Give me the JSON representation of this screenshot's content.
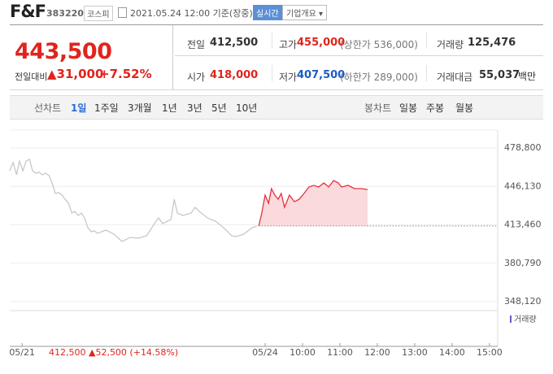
{
  "header": {
    "name": "F&F",
    "code": "383220",
    "market": "코스피",
    "timestamp": "2021.05.24 12:00 기준(장중)",
    "realtime": "실시간",
    "company_info": "기업개요"
  },
  "quote": {
    "price": "443,500",
    "change_label": "전일대비",
    "change": "▲31,000",
    "change_pct": "+7.52%",
    "stats": [
      {
        "label": "전일",
        "value": "412,500"
      },
      {
        "label": "고가",
        "value": "455,000",
        "note": "(상한가 536,000)"
      },
      {
        "label": "거래량",
        "value": "125,476"
      },
      {
        "label": "시가",
        "value": "418,000"
      },
      {
        "label": "저가",
        "value": "407,500",
        "note": "(하한가 289,000)"
      },
      {
        "label": "거래대금",
        "value": "55,037",
        "unit": "백만"
      }
    ]
  },
  "tabs": {
    "line_label": "선차트",
    "line": [
      "1일",
      "1주일",
      "3개월",
      "1년",
      "3년",
      "5년",
      "10년"
    ],
    "candle_label": "봉차트",
    "candle": [
      "일봉",
      "주봉",
      "월봉"
    ]
  },
  "chart_data": {
    "type": "line",
    "ylim": [
      348120,
      478800
    ],
    "yticks": [
      {
        "value": 478800,
        "label": "478,800"
      },
      {
        "value": 446130,
        "label": "446,130"
      },
      {
        "value": 413460,
        "label": "413,460"
      },
      {
        "value": 380790,
        "label": "380,790"
      },
      {
        "value": 348120,
        "label": "348,120"
      }
    ],
    "xlim": [
      -0.33,
      12.72
    ],
    "xticks": [
      {
        "value": 0,
        "label": "05/21"
      },
      {
        "value": 6.5,
        "label": "05/24"
      },
      {
        "value": 7.5,
        "label": "10:00"
      },
      {
        "value": 8.5,
        "label": "11:00"
      },
      {
        "value": 9.5,
        "label": "12:00"
      },
      {
        "value": 10.5,
        "label": "13:00"
      },
      {
        "value": 11.5,
        "label": "14:00"
      },
      {
        "value": 12.5,
        "label": "15:00"
      }
    ],
    "grid": true,
    "baseline": 412500,
    "prev_session_note": "412,500 ▲52,500 (+14.58%)",
    "volume_label": "거래량",
    "series": [
      {
        "color": "#c8c8c8",
        "x": [
          -0.33,
          -0.24,
          -0.15,
          -0.07,
          0.02,
          0.11,
          0.2,
          0.28,
          0.37,
          0.46,
          0.54,
          0.63,
          0.72,
          0.8,
          0.89,
          0.98,
          1.07,
          1.15,
          1.24,
          1.33,
          1.41,
          1.5,
          1.59,
          1.67,
          1.76,
          1.85,
          1.93,
          2.02,
          2.24,
          2.46,
          2.67,
          2.89,
          3.11,
          3.33,
          3.54,
          3.65,
          3.76,
          3.98,
          4.07,
          4.15,
          4.3,
          4.52,
          4.63,
          4.74,
          4.96,
          5.17,
          5.39,
          5.61,
          5.72,
          5.93,
          6.15,
          6.28
        ],
        "values": [
          459400,
          466400,
          456000,
          467700,
          459400,
          467700,
          469100,
          459400,
          457400,
          458100,
          456000,
          457400,
          455300,
          449100,
          440100,
          440800,
          438700,
          435200,
          431800,
          423500,
          424900,
          421400,
          423500,
          419300,
          411000,
          407600,
          408300,
          406200,
          409000,
          405500,
          399300,
          402700,
          402100,
          404100,
          414500,
          419300,
          414500,
          418000,
          435200,
          423500,
          421400,
          423500,
          428300,
          424900,
          419300,
          416600,
          411000,
          404100,
          403400,
          405500,
          411000,
          412400
        ]
      },
      {
        "color": "#e8303a",
        "fill": "#fbdadd",
        "x": [
          6.33,
          6.41,
          6.5,
          6.59,
          6.67,
          6.76,
          6.85,
          6.93,
          7.02,
          7.15,
          7.28,
          7.41,
          7.54,
          7.67,
          7.8,
          7.93,
          8.07,
          8.2,
          8.33,
          8.46,
          8.54,
          8.72,
          8.89,
          9.07,
          9.24
        ],
        "values": [
          412400,
          423500,
          438700,
          431800,
          444200,
          438700,
          435200,
          440100,
          428300,
          438700,
          433100,
          435200,
          440100,
          445600,
          447000,
          445600,
          449100,
          445600,
          451100,
          449100,
          445600,
          447000,
          444200,
          444200,
          443500
        ]
      }
    ]
  }
}
